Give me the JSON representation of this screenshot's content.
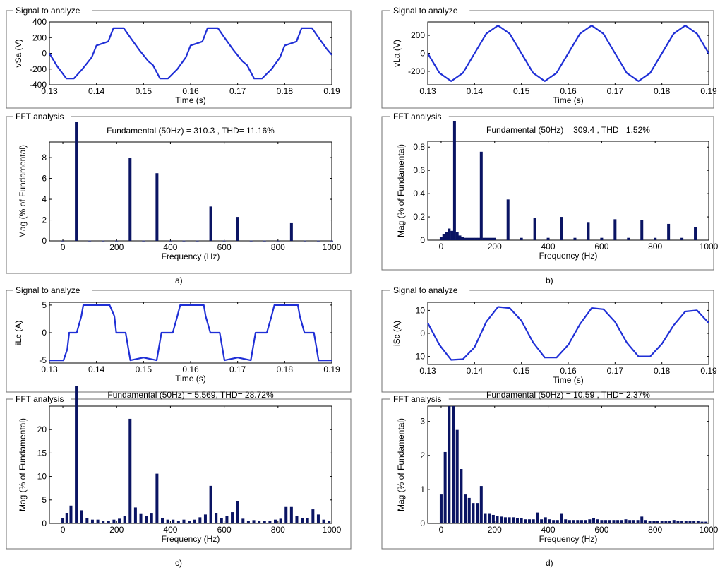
{
  "captions": [
    "a)",
    "b)",
    "c)",
    "d)"
  ],
  "chart_data": [
    {
      "id": "a-signal",
      "type": "line",
      "group_title": "Signal to analyze",
      "xlabel": "Time (s)",
      "ylabel": "vSa (V)",
      "xlim": [
        0.13,
        0.19
      ],
      "ylim": [
        -400,
        400
      ],
      "xticks": [
        "0.13",
        "0.14",
        "0.15",
        "0.16",
        "0.17",
        "0.18",
        "0.19"
      ],
      "yticks": [
        "400",
        "200",
        "0",
        "-200",
        "-400"
      ],
      "color": "#1f2fd6",
      "series": [
        {
          "x": [
            0.13,
            0.1316,
            0.1336,
            0.1352,
            0.137,
            0.139,
            0.14,
            0.1425,
            0.1436,
            0.1458,
            0.1472,
            0.149,
            0.151,
            0.152,
            0.1535,
            0.1552,
            0.1572,
            0.159,
            0.16,
            0.1625,
            0.1636,
            0.1658,
            0.1672,
            0.169,
            0.171,
            0.172,
            0.1735,
            0.1752,
            0.1772,
            0.179,
            0.18,
            0.1825,
            0.1836,
            0.1858,
            0.1872,
            0.189,
            0.19
          ],
          "y": [
            0,
            -160,
            -320,
            -320,
            -200,
            -50,
            100,
            150,
            320,
            320,
            200,
            50,
            -100,
            -150,
            -320,
            -320,
            -200,
            -50,
            100,
            150,
            320,
            320,
            200,
            50,
            -100,
            -150,
            -320,
            -320,
            -200,
            -50,
            100,
            150,
            320,
            320,
            200,
            50,
            -20
          ]
        }
      ]
    },
    {
      "id": "a-fft",
      "type": "bar",
      "group_title": "FFT analysis",
      "annotation": "Fundamental (50Hz) = 310.3 , THD= 11.16%",
      "xlabel": "Frequency (Hz)",
      "ylabel": "Mag (% of Fundamental)",
      "xlim": [
        -50,
        1000
      ],
      "ylim": [
        0,
        9.5
      ],
      "xticks": [
        0,
        200,
        400,
        600,
        800,
        1000
      ],
      "yticks": [
        0,
        2,
        4,
        6,
        8
      ],
      "color": "#0a1463",
      "clipped_top": [
        50
      ],
      "bars": {
        "x": [
          0,
          50,
          100,
          150,
          200,
          250,
          300,
          350,
          400,
          450,
          500,
          550,
          600,
          650,
          700,
          750,
          800,
          850,
          900,
          950,
          1000
        ],
        "y": [
          0.02,
          9.5,
          0.02,
          0.02,
          0.02,
          8.0,
          0.02,
          6.5,
          0.02,
          0.02,
          0.02,
          3.3,
          0.02,
          2.3,
          0.02,
          0.02,
          0.02,
          1.7,
          0.02,
          0.02,
          0.02
        ]
      }
    },
    {
      "id": "b-signal",
      "type": "line",
      "group_title": "Signal to analyze",
      "xlabel": "Time (s)",
      "ylabel": "vLa (V)",
      "xlim": [
        0.13,
        0.19
      ],
      "ylim": [
        -350,
        350
      ],
      "xticks": [
        "0.13",
        "0.14",
        "0.15",
        "0.16",
        "0.17",
        "0.18",
        "0.19"
      ],
      "yticks": [
        "200",
        "0",
        "-200"
      ],
      "color": "#1f2fd6",
      "series": [
        {
          "x": [
            0.13,
            0.1325,
            0.135,
            0.1375,
            0.14,
            0.1425,
            0.145,
            0.1475,
            0.15,
            0.1525,
            0.155,
            0.1575,
            0.16,
            0.1625,
            0.165,
            0.1675,
            0.17,
            0.1725,
            0.175,
            0.1775,
            0.18,
            0.1825,
            0.185,
            0.1875,
            0.19
          ],
          "y": [
            0,
            -219,
            -310,
            -219,
            0,
            219,
            310,
            219,
            0,
            -219,
            -310,
            -219,
            0,
            219,
            310,
            219,
            0,
            -219,
            -310,
            -219,
            0,
            219,
            310,
            219,
            0
          ]
        }
      ]
    },
    {
      "id": "b-fft",
      "type": "bar",
      "group_title": "FFT analysis",
      "annotation": "Fundamental (50Hz) = 309.4 , THD= 1.52%",
      "xlabel": "Frequency (Hz)",
      "ylabel": "Mag (% of Fundamental)",
      "xlim": [
        -50,
        1000
      ],
      "ylim": [
        0,
        0.85
      ],
      "xticks": [
        0,
        200,
        400,
        600,
        800,
        1000
      ],
      "yticks": [
        0,
        0.2,
        0.4,
        0.6,
        0.8
      ],
      "color": "#0a1463",
      "clipped_top": [
        50
      ],
      "bars": {
        "x": [
          0,
          10,
          20,
          30,
          40,
          50,
          60,
          70,
          80,
          90,
          100,
          110,
          120,
          130,
          140,
          150,
          160,
          170,
          180,
          190,
          200,
          250,
          300,
          350,
          400,
          450,
          500,
          550,
          600,
          650,
          700,
          750,
          800,
          850,
          900,
          950
        ],
        "y": [
          0.03,
          0.05,
          0.07,
          0.1,
          0.08,
          0.85,
          0.07,
          0.04,
          0.03,
          0.02,
          0.02,
          0.02,
          0.02,
          0.02,
          0.02,
          0.76,
          0.02,
          0.02,
          0.02,
          0.02,
          0.02,
          0.35,
          0.02,
          0.19,
          0.02,
          0.2,
          0.02,
          0.15,
          0.02,
          0.18,
          0.02,
          0.17,
          0.02,
          0.14,
          0.02,
          0.11
        ]
      }
    },
    {
      "id": "c-signal",
      "type": "line",
      "group_title": "Signal to analyze",
      "xlabel": "Time (s)",
      "ylabel": "iLc (A)",
      "xlim": [
        0.13,
        0.19
      ],
      "ylim": [
        -5.5,
        5.5
      ],
      "xticks": [
        "0.13",
        "0.14",
        "0.15",
        "0.16",
        "0.17",
        "0.18",
        "0.19"
      ],
      "yticks": [
        "5",
        "0",
        "-5"
      ],
      "color": "#1f2fd6",
      "series": [
        {
          "x": [
            0.13,
            0.133,
            0.1338,
            0.1342,
            0.1352,
            0.1358,
            0.1368,
            0.1372,
            0.14,
            0.1428,
            0.1438,
            0.1442,
            0.1462,
            0.1468,
            0.1472,
            0.15,
            0.1528,
            0.1532,
            0.1538,
            0.1558,
            0.1562,
            0.1572,
            0.1578,
            0.16,
            0.1628,
            0.1632,
            0.1642,
            0.1662,
            0.1668,
            0.1672,
            0.17,
            0.1728,
            0.1732,
            0.1738,
            0.1758,
            0.1762,
            0.1772,
            0.1778,
            0.18,
            0.1828,
            0.1832,
            0.1842,
            0.1862,
            0.1868,
            0.1872,
            0.19
          ],
          "y": [
            -5,
            -5,
            -3,
            0,
            0,
            0,
            3,
            5,
            5,
            5,
            3,
            0,
            0,
            -3,
            -5,
            -4.5,
            -5,
            -3,
            0,
            0,
            0,
            3,
            5,
            5,
            5,
            3,
            0,
            0,
            -3,
            -5,
            -4.5,
            -5,
            -3,
            0,
            0,
            0,
            3,
            5,
            5,
            5,
            3,
            0,
            0,
            -3,
            -5,
            -5
          ]
        }
      ]
    },
    {
      "id": "c-fft",
      "type": "bar",
      "group_title": "FFT analysis",
      "annotation": "Fundamental (50Hz) = 5.569, THD= 28.72%",
      "xlabel": "Frequency (Hz)",
      "ylabel": "Mag (% of Fundamental)",
      "xlim": [
        -50,
        1000
      ],
      "ylim": [
        0,
        25
      ],
      "xticks": [
        0,
        200,
        400,
        600,
        800,
        1000
      ],
      "yticks": [
        0,
        5,
        10,
        15,
        20
      ],
      "color": "#0a1463",
      "clipped_top": [
        50
      ],
      "bars": {
        "x": [
          0,
          15,
          30,
          50,
          70,
          90,
          110,
          130,
          150,
          170,
          190,
          210,
          230,
          250,
          270,
          290,
          310,
          330,
          350,
          370,
          390,
          410,
          430,
          450,
          470,
          490,
          510,
          530,
          550,
          570,
          590,
          610,
          630,
          650,
          670,
          690,
          710,
          730,
          750,
          770,
          790,
          810,
          830,
          850,
          870,
          890,
          910,
          930,
          950,
          970,
          990
        ],
        "y": [
          1.2,
          2.2,
          3.8,
          25,
          2.8,
          1.2,
          0.8,
          0.8,
          0.6,
          0.5,
          0.8,
          1.0,
          1.6,
          22.3,
          3.4,
          2.0,
          1.6,
          2.1,
          10.6,
          1.2,
          0.8,
          0.8,
          0.6,
          0.8,
          0.6,
          0.8,
          1.3,
          1.9,
          8.0,
          2.2,
          1.2,
          1.6,
          2.4,
          4.7,
          1.0,
          0.6,
          0.7,
          0.6,
          0.6,
          0.6,
          0.8,
          1.0,
          3.5,
          3.5,
          1.6,
          1.2,
          1.2,
          3.0,
          1.9,
          0.8,
          0.5
        ]
      }
    },
    {
      "id": "d-signal",
      "type": "line",
      "group_title": "Signal to analyze",
      "xlabel": "Time (s)",
      "ylabel": "iSc (A)",
      "xlim": [
        0.13,
        0.19
      ],
      "ylim": [
        -13.5,
        13.5
      ],
      "xticks": [
        "0.13",
        "0.14",
        "0.15",
        "0.16",
        "0.17",
        "0.18",
        "0.19"
      ],
      "yticks": [
        "10",
        "0",
        "-10"
      ],
      "color": "#1f2fd6",
      "series": [
        {
          "x": [
            0.13,
            0.1325,
            0.135,
            0.1375,
            0.14,
            0.1425,
            0.145,
            0.1475,
            0.15,
            0.1525,
            0.155,
            0.1575,
            0.16,
            0.1625,
            0.165,
            0.1675,
            0.17,
            0.1725,
            0.175,
            0.1775,
            0.18,
            0.1825,
            0.185,
            0.1875,
            0.19
          ],
          "y": [
            4.5,
            -5,
            -11.5,
            -11.2,
            -6,
            5,
            11.5,
            11,
            5.5,
            -4,
            -10.5,
            -10.5,
            -5,
            4,
            11,
            10.5,
            5,
            -4,
            -10,
            -10,
            -4.5,
            3.5,
            9.5,
            10,
            4.5
          ]
        }
      ]
    },
    {
      "id": "d-fft",
      "type": "bar",
      "group_title": "FFT analysis",
      "annotation": "Fundamental (50Hz) = 10.59 , THD= 2.37%",
      "xlabel": "Frequency (Hz)",
      "ylabel": "Mag (% of Fundamental)",
      "xlim": [
        -50,
        1000
      ],
      "ylim": [
        0,
        3.45
      ],
      "xticks": [
        0,
        200,
        400,
        600,
        800,
        1000
      ],
      "yticks": [
        0,
        1,
        2,
        3
      ],
      "color": "#0a1463",
      "clipped_top": [],
      "bars": {
        "x": [
          0,
          15,
          30,
          45,
          60,
          75,
          90,
          105,
          120,
          135,
          150,
          165,
          180,
          195,
          210,
          225,
          240,
          255,
          270,
          285,
          300,
          315,
          330,
          345,
          360,
          375,
          390,
          405,
          420,
          435,
          450,
          465,
          480,
          495,
          510,
          525,
          540,
          555,
          570,
          585,
          600,
          615,
          630,
          645,
          660,
          675,
          690,
          705,
          720,
          735,
          750,
          765,
          780,
          795,
          810,
          825,
          840,
          855,
          870,
          885,
          900,
          915,
          930,
          945,
          960,
          975,
          990
        ],
        "y": [
          0.85,
          2.1,
          3.5,
          3.6,
          2.75,
          1.6,
          0.85,
          0.75,
          0.6,
          0.6,
          1.1,
          0.28,
          0.28,
          0.25,
          0.22,
          0.2,
          0.18,
          0.18,
          0.18,
          0.15,
          0.15,
          0.12,
          0.12,
          0.12,
          0.32,
          0.12,
          0.18,
          0.12,
          0.1,
          0.1,
          0.28,
          0.12,
          0.1,
          0.1,
          0.1,
          0.1,
          0.1,
          0.12,
          0.15,
          0.12,
          0.1,
          0.1,
          0.1,
          0.1,
          0.1,
          0.1,
          0.12,
          0.1,
          0.1,
          0.1,
          0.2,
          0.1,
          0.08,
          0.08,
          0.08,
          0.08,
          0.08,
          0.08,
          0.1,
          0.08,
          0.08,
          0.08,
          0.08,
          0.08,
          0.08,
          0.05,
          0.05
        ]
      }
    }
  ]
}
